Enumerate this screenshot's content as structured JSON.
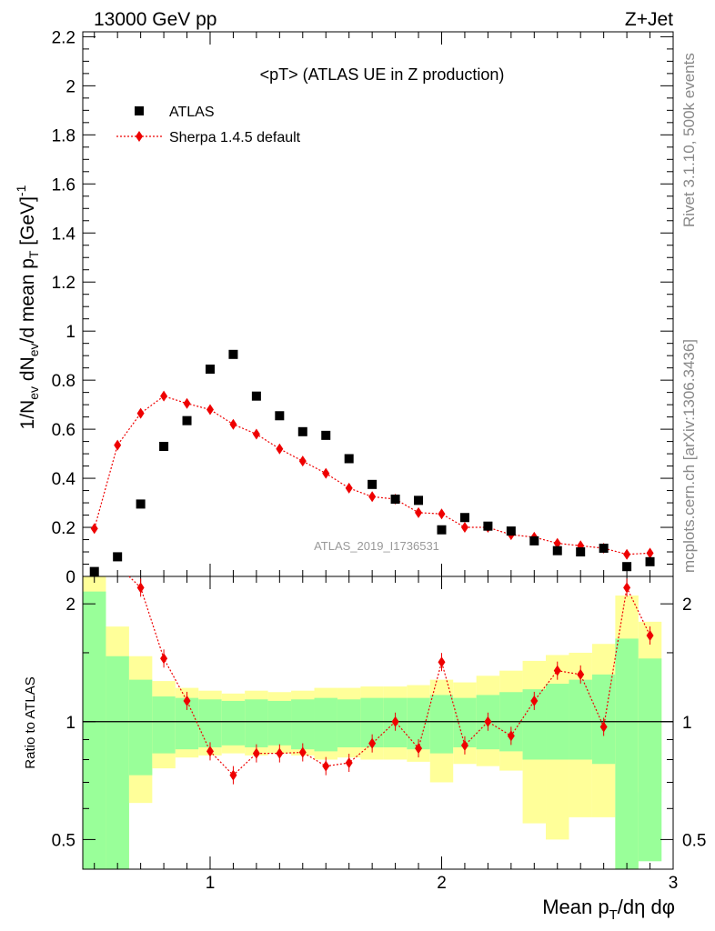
{
  "header": {
    "left": "13000 GeV pp",
    "right": "Z+Jet"
  },
  "side_text": {
    "rivet": "Rivet 3.1.10,  500k events",
    "mcplots": "mcplots.cern.ch [arXiv:1306.3436]"
  },
  "colors": {
    "data": "#000000",
    "mc": "#ee0000",
    "band_green": "#99ff99",
    "band_yellow": "#ffff99"
  },
  "chart_data": [
    {
      "type": "scatter",
      "panel": "main",
      "title": "<pT> (ATLAS UE in Z production)",
      "ylabel": "1/N_ev dN_ev/d mean p_T [GeV]^-1",
      "xlabel": "",
      "analysis_label": "ATLAS_2019_I1736531",
      "xlim": [
        0.45,
        3.0
      ],
      "ylim": [
        0,
        2.22
      ],
      "y_ticks": [
        0.2,
        0.4,
        0.6,
        0.8,
        1,
        1.2,
        1.4,
        1.6,
        1.8,
        2,
        2.2
      ],
      "y_tick_labels": [
        "0.2",
        "0.4",
        "0.6",
        "0.8",
        "1",
        "1.2",
        "1.4",
        "1.6",
        "1.8",
        "2",
        "2.2"
      ],
      "legend_position": "top-left",
      "series": [
        {
          "name": "ATLAS",
          "marker": "square",
          "x": [
            0.5,
            0.6,
            0.7,
            0.8,
            0.9,
            1.0,
            1.1,
            1.2,
            1.3,
            1.4,
            1.5,
            1.6,
            1.7,
            1.8,
            1.9,
            2.0,
            2.1,
            2.2,
            2.3,
            2.4,
            2.5,
            2.6,
            2.7,
            2.8,
            2.9
          ],
          "y": [
            0.02,
            0.08,
            0.295,
            0.53,
            0.635,
            0.845,
            0.905,
            0.735,
            0.655,
            0.59,
            0.575,
            0.48,
            0.375,
            0.315,
            0.31,
            0.19,
            0.24,
            0.205,
            0.185,
            0.145,
            0.105,
            0.1,
            0.115,
            0.04,
            0.06
          ]
        },
        {
          "name": "Sherpa 1.4.5 default",
          "marker": "diamond",
          "x": [
            0.5,
            0.6,
            0.7,
            0.8,
            0.9,
            1.0,
            1.1,
            1.2,
            1.3,
            1.4,
            1.5,
            1.6,
            1.7,
            1.8,
            1.9,
            2.0,
            2.1,
            2.2,
            2.3,
            2.4,
            2.5,
            2.6,
            2.7,
            2.8,
            2.9
          ],
          "y": [
            0.195,
            0.535,
            0.665,
            0.735,
            0.705,
            0.68,
            0.62,
            0.58,
            0.52,
            0.47,
            0.42,
            0.36,
            0.325,
            0.315,
            0.26,
            0.255,
            0.2,
            0.2,
            0.17,
            0.16,
            0.135,
            0.125,
            0.115,
            0.09,
            0.095
          ]
        }
      ]
    },
    {
      "type": "line",
      "panel": "ratio",
      "ylabel": "Ratio to ATLAS",
      "xlabel": "Mean p_T/dη dφ",
      "xlim": [
        0.45,
        3.0
      ],
      "ylim": [
        0.42,
        2.35
      ],
      "log_y": true,
      "reference_line": 1,
      "y_ticks": [
        0.5,
        1,
        2
      ],
      "y_tick_labels": [
        "0.5",
        "1",
        "2"
      ],
      "x_ticks": [
        1,
        2,
        3
      ],
      "x_tick_labels": [
        "1",
        "2",
        "3"
      ],
      "bins": [
        {
          "lo": 0.45,
          "hi": 0.55,
          "green": [
            0.2,
            2.15
          ],
          "yellow": [
            0.2,
            2.5
          ]
        },
        {
          "lo": 0.55,
          "hi": 0.65,
          "green": [
            0.42,
            1.47
          ],
          "yellow": [
            0.2,
            1.75
          ]
        },
        {
          "lo": 0.65,
          "hi": 0.75,
          "green": [
            0.73,
            1.28
          ],
          "yellow": [
            0.62,
            1.47
          ]
        },
        {
          "lo": 0.75,
          "hi": 0.85,
          "green": [
            0.83,
            1.16
          ],
          "yellow": [
            0.76,
            1.27
          ]
        },
        {
          "lo": 0.85,
          "hi": 0.95,
          "green": [
            0.85,
            1.15
          ],
          "yellow": [
            0.81,
            1.22
          ]
        },
        {
          "lo": 0.95,
          "hi": 1.05,
          "green": [
            0.86,
            1.14
          ],
          "yellow": [
            0.82,
            1.2
          ]
        },
        {
          "lo": 1.05,
          "hi": 1.15,
          "green": [
            0.87,
            1.13
          ],
          "yellow": [
            0.83,
            1.18
          ]
        },
        {
          "lo": 1.15,
          "hi": 1.25,
          "green": [
            0.86,
            1.14
          ],
          "yellow": [
            0.82,
            1.2
          ]
        },
        {
          "lo": 1.25,
          "hi": 1.35,
          "green": [
            0.87,
            1.13
          ],
          "yellow": [
            0.83,
            1.19
          ]
        },
        {
          "lo": 1.35,
          "hi": 1.45,
          "green": [
            0.85,
            1.14
          ],
          "yellow": [
            0.82,
            1.2
          ]
        },
        {
          "lo": 1.45,
          "hi": 1.55,
          "green": [
            0.84,
            1.15
          ],
          "yellow": [
            0.8,
            1.22
          ]
        },
        {
          "lo": 1.55,
          "hi": 1.65,
          "green": [
            0.86,
            1.14
          ],
          "yellow": [
            0.81,
            1.22
          ]
        },
        {
          "lo": 1.65,
          "hi": 1.75,
          "green": [
            0.86,
            1.15
          ],
          "yellow": [
            0.8,
            1.23
          ]
        },
        {
          "lo": 1.75,
          "hi": 1.85,
          "green": [
            0.86,
            1.15
          ],
          "yellow": [
            0.8,
            1.23
          ]
        },
        {
          "lo": 1.85,
          "hi": 1.95,
          "green": [
            0.85,
            1.15
          ],
          "yellow": [
            0.79,
            1.24
          ]
        },
        {
          "lo": 1.95,
          "hi": 2.05,
          "green": [
            0.83,
            1.17
          ],
          "yellow": [
            0.7,
            1.28
          ]
        },
        {
          "lo": 2.05,
          "hi": 2.15,
          "green": [
            0.86,
            1.15
          ],
          "yellow": [
            0.78,
            1.26
          ]
        },
        {
          "lo": 2.15,
          "hi": 2.25,
          "green": [
            0.85,
            1.17
          ],
          "yellow": [
            0.77,
            1.31
          ]
        },
        {
          "lo": 2.25,
          "hi": 2.35,
          "green": [
            0.84,
            1.19
          ],
          "yellow": [
            0.75,
            1.35
          ]
        },
        {
          "lo": 2.35,
          "hi": 2.45,
          "green": [
            0.8,
            1.21
          ],
          "yellow": [
            0.55,
            1.43
          ]
        },
        {
          "lo": 2.45,
          "hi": 2.55,
          "green": [
            0.8,
            1.25
          ],
          "yellow": [
            0.5,
            1.48
          ]
        },
        {
          "lo": 2.55,
          "hi": 2.65,
          "green": [
            0.8,
            1.28
          ],
          "yellow": [
            0.57,
            1.5
          ]
        },
        {
          "lo": 2.65,
          "hi": 2.75,
          "green": [
            0.78,
            1.32
          ],
          "yellow": [
            0.57,
            1.58
          ]
        },
        {
          "lo": 2.75,
          "hi": 2.85,
          "green": [
            0.41,
            1.63
          ],
          "yellow": [
            0.2,
            2.1
          ]
        },
        {
          "lo": 2.85,
          "hi": 2.95,
          "green": [
            0.44,
            1.45
          ],
          "yellow": [
            0.66,
            1.8
          ]
        }
      ],
      "series": [
        {
          "name": "Sherpa 1.4.5 default",
          "marker": "diamond",
          "x": [
            0.7,
            0.8,
            0.9,
            1.0,
            1.1,
            1.2,
            1.3,
            1.4,
            1.5,
            1.6,
            1.7,
            1.8,
            1.9,
            2.0,
            2.1,
            2.2,
            2.3,
            2.4,
            2.5,
            2.6,
            2.7,
            2.8,
            2.9
          ],
          "y": [
            2.2,
            1.45,
            1.13,
            0.84,
            0.73,
            0.83,
            0.83,
            0.835,
            0.77,
            0.785,
            0.88,
            1.0,
            0.855,
            1.42,
            0.87,
            1.0,
            0.92,
            1.13,
            1.35,
            1.32,
            0.97,
            2.2,
            1.66
          ]
        }
      ]
    }
  ]
}
